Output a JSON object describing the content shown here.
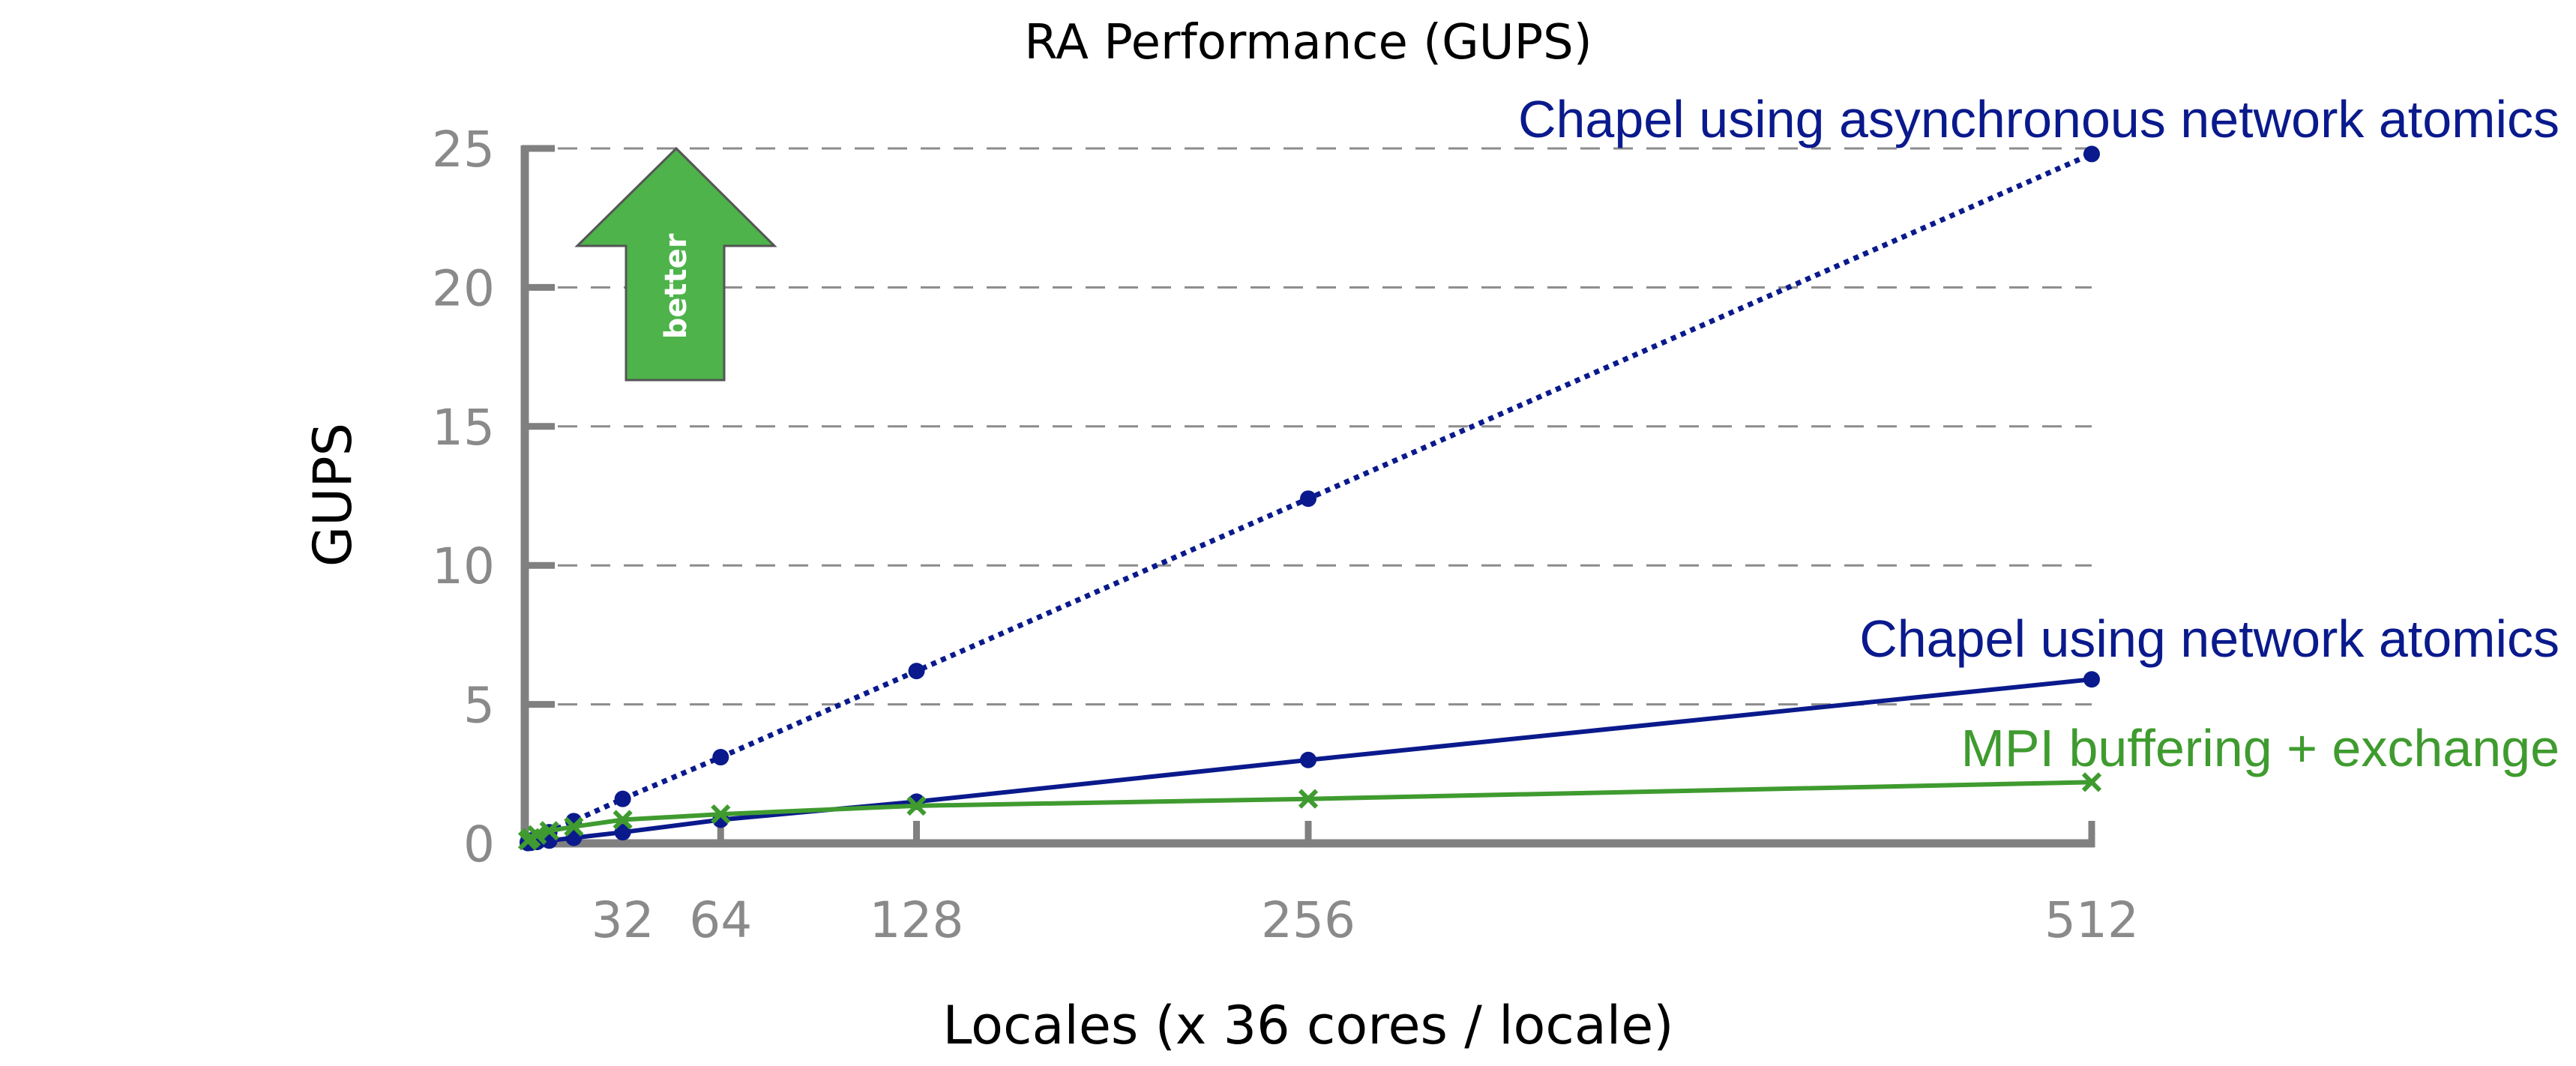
{
  "chart_data": {
    "type": "line",
    "title": "RA Performance (GUPS)",
    "xlabel": "Locales (x 36 cores / locale)",
    "ylabel": "GUPS",
    "ylim": [
      0,
      25
    ],
    "yticks": [
      0,
      5,
      10,
      15,
      20,
      25
    ],
    "xlim": [
      0,
      512
    ],
    "xticks": [
      32,
      64,
      128,
      256,
      512
    ],
    "grid": "horizontal dashed",
    "annotation": {
      "text": "better",
      "color": "#4db34a"
    },
    "series": [
      {
        "name": "Chapel using asynchronous network atomics",
        "color": "#0a1a8c",
        "style": "dotted",
        "marker": "circle",
        "x": [
          1,
          2,
          4,
          8,
          16,
          32,
          64,
          128,
          256,
          512
        ],
        "values": [
          0.05,
          0.1,
          0.2,
          0.4,
          0.8,
          1.6,
          3.1,
          6.2,
          12.4,
          24.8
        ]
      },
      {
        "name": "Chapel using network atomics",
        "color": "#0a1a8c",
        "style": "solid",
        "marker": "circle",
        "x": [
          1,
          2,
          4,
          8,
          16,
          32,
          64,
          128,
          256,
          512
        ],
        "values": [
          0.01,
          0.02,
          0.05,
          0.1,
          0.2,
          0.4,
          0.85,
          1.5,
          3.0,
          5.9
        ]
      },
      {
        "name": "MPI buffering + exchange",
        "color": "#3f9b2f",
        "style": "solid",
        "marker": "x",
        "x": [
          1,
          2,
          4,
          8,
          16,
          32,
          64,
          128,
          256,
          512
        ],
        "values": [
          0.1,
          0.2,
          0.3,
          0.45,
          0.6,
          0.85,
          1.05,
          1.35,
          1.6,
          2.2
        ]
      }
    ]
  }
}
